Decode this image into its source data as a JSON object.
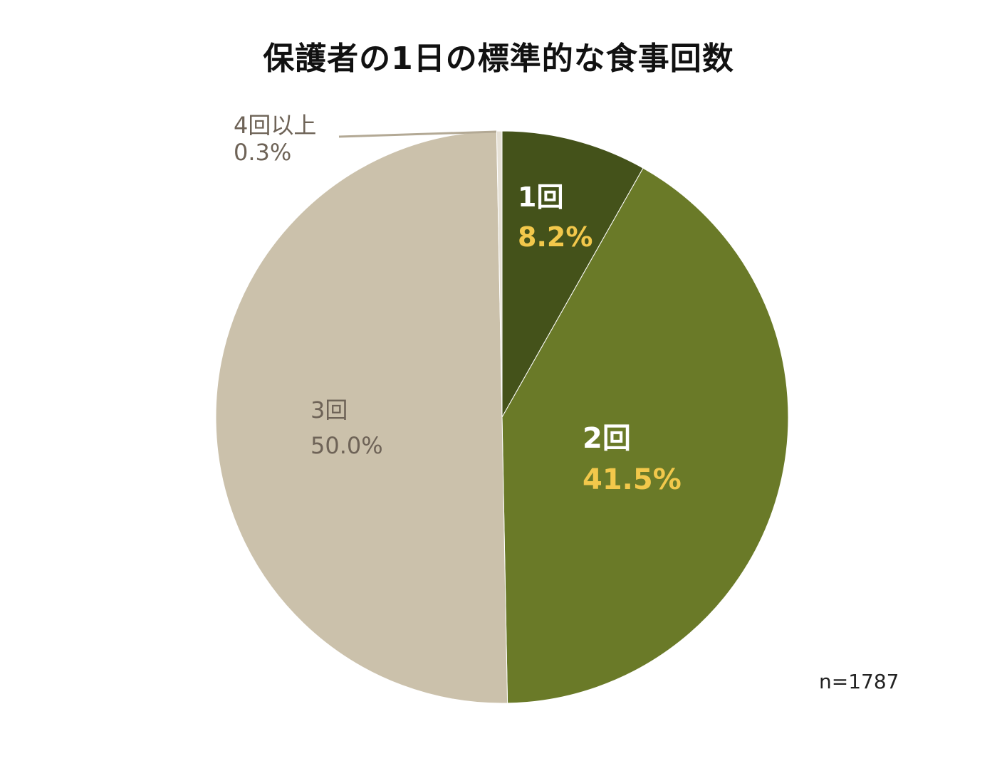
{
  "chart_data": {
    "type": "pie",
    "title": "保護者の1日の標準的な食事回数",
    "sample_note": "n=1787",
    "slices": [
      {
        "label": "1回",
        "value": 8.2,
        "value_label": "8.2%",
        "color": "#44521a",
        "label_color": "#ffffff",
        "value_color": "#f2c84b",
        "bold": true
      },
      {
        "label": "2回",
        "value": 41.5,
        "value_label": "41.5%",
        "color": "#6a7a28",
        "label_color": "#ffffff",
        "value_color": "#f2c84b",
        "bold": true
      },
      {
        "label": "3回",
        "value": 50.0,
        "value_label": "50.0%",
        "color": "#cbc1ab",
        "label_color": "#6e6357",
        "value_color": "#6e6357",
        "bold": false
      },
      {
        "label": "4回以上",
        "value": 0.3,
        "value_label": "0.3%",
        "color": "#e6e1d6",
        "label_color": "#6e6357",
        "value_color": "#6e6357",
        "bold": false
      }
    ]
  }
}
